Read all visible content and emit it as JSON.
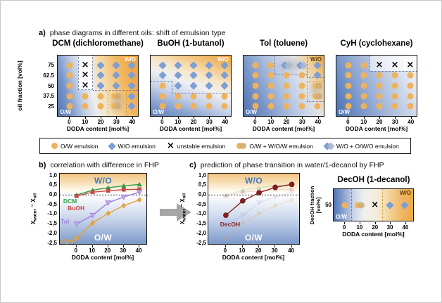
{
  "section_a": {
    "label": "a)",
    "title": "phase diagrams in different oils: shift of emulsion type",
    "y_axis": {
      "label": "oil fraction [vol%]",
      "ticks": [
        "75",
        "62.5",
        "50",
        "37.5",
        "25"
      ]
    },
    "x_axis": {
      "label": "DODA content [mol%]",
      "ticks": [
        "0",
        "10",
        "20",
        "30",
        "40"
      ]
    },
    "panels": [
      {
        "id": "dcm",
        "title": "DCM (dichloromethane)",
        "corner_top": "W/O",
        "corner_bottom": "O/W",
        "grid": [
          [
            "o",
            "x",
            "d",
            "d",
            "d"
          ],
          [
            "o",
            "x",
            "d",
            "d",
            "d"
          ],
          [
            "o",
            "x",
            "d",
            "d",
            "d"
          ],
          [
            "o",
            "o",
            "o",
            "oo",
            "d"
          ],
          [
            "o",
            "o",
            "o",
            "oo",
            "d"
          ]
        ]
      },
      {
        "id": "buoh",
        "title": "BuOH (1-butanol)",
        "corner_top": "W/O",
        "corner_bottom": "O/W",
        "grid": [
          [
            "d",
            "d",
            "d",
            "d",
            "d"
          ],
          [
            "d",
            "d",
            "d",
            "d",
            "d"
          ],
          [
            "o",
            "d",
            "d",
            "d",
            "d"
          ],
          [
            "o",
            "o",
            "o",
            "o",
            "o"
          ],
          [
            "o",
            "o",
            "o",
            "o",
            "o"
          ]
        ]
      },
      {
        "id": "tol",
        "title": "Tol (toluene)",
        "corner_top": "W/O",
        "corner_bottom": "O/W",
        "grid": [
          [
            "o",
            "o",
            "dd",
            "dd",
            "d"
          ],
          [
            "o",
            "o",
            "o",
            "o",
            "d"
          ],
          [
            "o",
            "o",
            "o",
            "o",
            "oo"
          ],
          [
            "o",
            "o",
            "o",
            "o",
            "oo"
          ],
          [
            "o",
            "o",
            "o",
            "o",
            "o"
          ]
        ]
      },
      {
        "id": "cyh",
        "title": "CyH (cyclohexane)",
        "corner_top": "",
        "corner_bottom": "O/W",
        "grid": [
          [
            "o",
            "o",
            "x",
            "x",
            "x"
          ],
          [
            "o",
            "o",
            "o",
            "o",
            "o"
          ],
          [
            "o",
            "o",
            "o",
            "o",
            "o"
          ],
          [
            "o",
            "o",
            "o",
            "o",
            "o"
          ],
          [
            "o",
            "o",
            "o",
            "o",
            "o"
          ]
        ]
      }
    ]
  },
  "legend": {
    "items": [
      {
        "marker": "o",
        "label": "O/W emulsion"
      },
      {
        "marker": "d",
        "label": "W/O emulsion"
      },
      {
        "marker": "x",
        "label": "unstable emulsion"
      },
      {
        "marker": "oo",
        "label": "O/W + W/O/W emulsion"
      },
      {
        "marker": "dd",
        "label": "W/O + O/W/O emulsion"
      }
    ]
  },
  "section_b": {
    "label": "b)",
    "title": "correlation with difference in FHP"
  },
  "section_c": {
    "label": "c)",
    "title": "prediction of phase transition in water/1-decanol by FHP"
  },
  "chart_data": [
    {
      "id": "b",
      "type": "line",
      "x": [
        0,
        10,
        20,
        30,
        40
      ],
      "xticks": [
        "0",
        "10",
        "20",
        "30",
        "40"
      ],
      "xlabel": "DODA content [mol%]",
      "ylabel": "χwater − χoil",
      "ylabel_parts": {
        "chi1": "χ",
        "sub1": "water",
        "chi2": " − χ",
        "sub2": "oil"
      },
      "ylim": [
        -2.5,
        1.0
      ],
      "yticks": [
        "1,0",
        "0,5",
        "0,0",
        "-0,5",
        "-1,0",
        "-1,5",
        "-2,0",
        "-2,5"
      ],
      "region_top": "W/O",
      "region_bottom": "O/W",
      "zero_line": true,
      "series": [
        {
          "name": "DCM",
          "color": "#2f9e48",
          "marker": "triangle-up",
          "values": [
            0.0,
            0.25,
            0.38,
            0.48,
            0.55
          ]
        },
        {
          "name": "BuOH",
          "color": "#c84848",
          "marker": "square",
          "values": [
            -0.05,
            0.15,
            0.22,
            0.28,
            0.3
          ]
        },
        {
          "name": "Tol",
          "color": "#9d7ed6",
          "marker": "triangle-down",
          "fill": "#c2abe8",
          "values": [
            -1.5,
            -1.05,
            -0.4,
            -0.1,
            0.15
          ]
        },
        {
          "name": "CyH",
          "color": "#e2a23b",
          "marker": "diamond",
          "values": [
            -2.25,
            -1.45,
            -0.95,
            -0.55,
            -0.25
          ]
        }
      ]
    },
    {
      "id": "c",
      "type": "line",
      "x": [
        0,
        10,
        20,
        30,
        40
      ],
      "xticks": [
        "0",
        "10",
        "20",
        "30",
        "40"
      ],
      "xlabel": "DODA content [mol%]",
      "ylabel": "χwater − χoil",
      "ylabel_parts": {
        "chi1": "χ",
        "sub1": "water",
        "chi2": " − χ",
        "sub2": "oil"
      },
      "ylim": [
        -2.5,
        1.0
      ],
      "yticks": [
        "1,0",
        "0,5",
        "0,0",
        "-0,5",
        "-1,0",
        "-1,5",
        "-2,0",
        "-2,5"
      ],
      "region_top": "W/O",
      "region_bottom": "O/W",
      "zero_line": true,
      "ghost_of": 0,
      "series": [
        {
          "name": "DecOH",
          "color": "#8a1f1f",
          "marker": "circle",
          "values": [
            -1.05,
            -0.3,
            0.12,
            0.4,
            0.55
          ]
        }
      ]
    }
  ],
  "panel_decoh": {
    "title": "DecOH (1-decanol)",
    "y_axis": {
      "label_line1": "DecOH fraction",
      "label_line2": "[vol%]",
      "tick": "50"
    },
    "x_axis": {
      "label": "DODA content [mol%]",
      "ticks": [
        "0",
        "10",
        "20",
        "30",
        "40"
      ]
    },
    "corner_top": "W/O",
    "corner_bottom": "O/W",
    "row": [
      "o",
      "oo",
      "x",
      "d",
      "d"
    ]
  },
  "colors": {
    "ow_marker": "#efb25c",
    "wo_marker": "#7f9ed4",
    "region_label_blue": "#3e7cba",
    "decoh_series": "#8a1f1f",
    "arrow_gray": "#a6a6a6"
  }
}
